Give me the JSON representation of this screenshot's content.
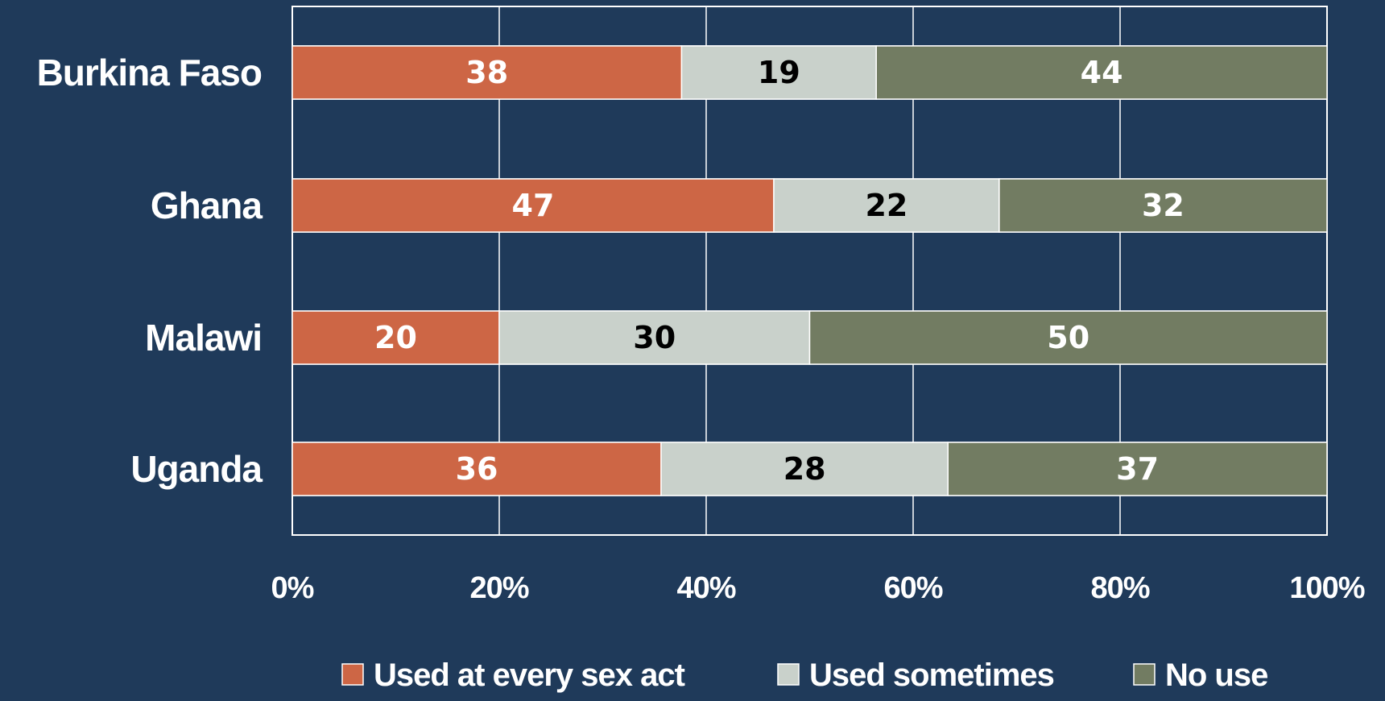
{
  "chart_data": {
    "type": "bar",
    "orientation": "horizontal",
    "stacked": true,
    "percent_stacked": true,
    "categories": [
      "Burkina Faso",
      "Ghana",
      "Malawi",
      "Uganda"
    ],
    "series": [
      {
        "name": "Used at every sex act",
        "color": "#cd6645",
        "label_color": "#ffffff",
        "values": [
          38,
          47,
          20,
          36
        ]
      },
      {
        "name": "Used sometimes",
        "color": "#c9d1cb",
        "label_color": "#000000",
        "values": [
          19,
          22,
          30,
          28
        ]
      },
      {
        "name": "No use",
        "color": "#727c62",
        "label_color": "#ffffff",
        "values": [
          44,
          32,
          50,
          37
        ]
      }
    ],
    "x_ticks": [
      "0%",
      "20%",
      "40%",
      "60%",
      "80%",
      "100%"
    ],
    "xlim": [
      0,
      100
    ],
    "grid": true,
    "legend_position": "bottom",
    "background_color": "#1f3a5a",
    "grid_color": "#ffffff"
  }
}
